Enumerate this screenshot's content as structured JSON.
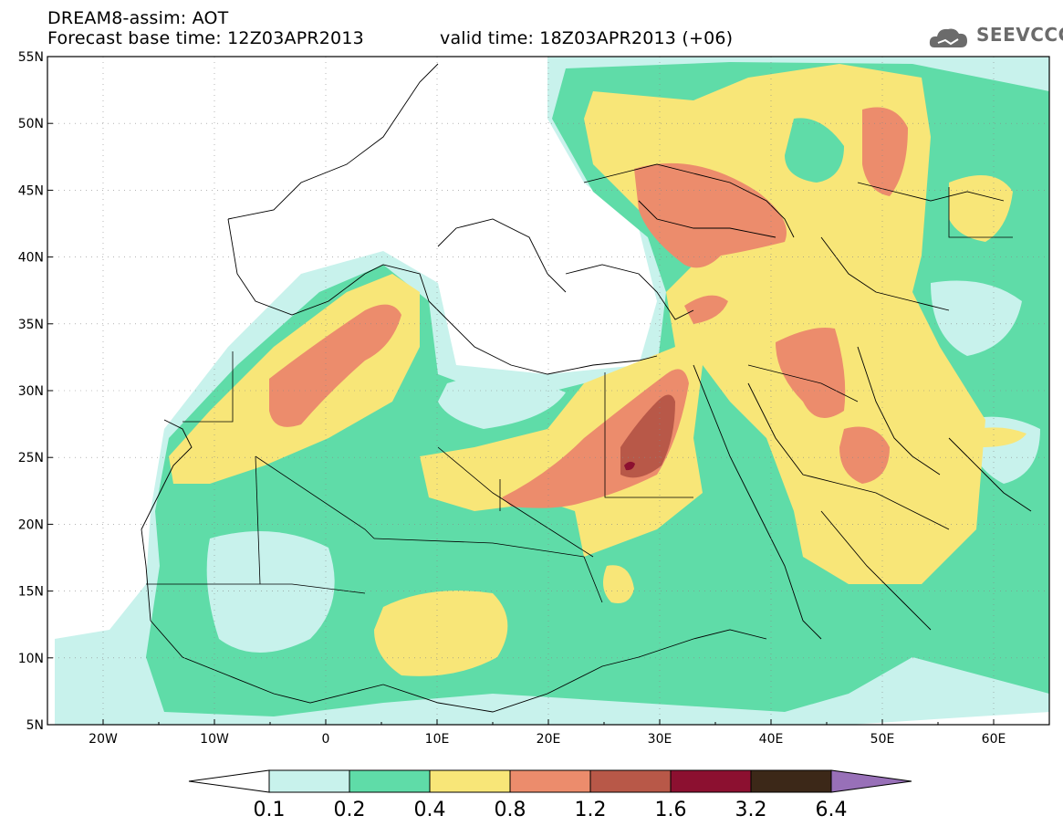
{
  "header": {
    "line1": "DREAM8-assim: AOT",
    "line2_left": "Forecast base time: 12Z03APR2013",
    "line2_right": "valid time: 18Z03APR2013 (+06)",
    "logo_text": "SEEVCCC"
  },
  "map": {
    "lon_range": [
      -25,
      65
    ],
    "lat_range": [
      5,
      55
    ],
    "lon_ticks": [
      "20W",
      "10W",
      "0",
      "10E",
      "20E",
      "30E",
      "40E",
      "50E",
      "60E"
    ],
    "lat_ticks": [
      "55N",
      "50N",
      "45N",
      "40N",
      "35N",
      "30N",
      "25N",
      "20N",
      "15N",
      "10N",
      "5N"
    ],
    "colors": {
      "c01": "#c8f2ec",
      "c02": "#5fdca8",
      "c04": "#f8e678",
      "c08": "#ec8c6c",
      "c12": "#b85848",
      "c16": "#8c1030",
      "c32": "#3c2818",
      "c64": "#9870b8"
    }
  },
  "colorbar": {
    "labels": [
      "0.1",
      "0.2",
      "0.4",
      "0.8",
      "1.2",
      "1.6",
      "3.2",
      "6.4"
    ],
    "colors": [
      "#c8f2ec",
      "#5fdca8",
      "#f8e678",
      "#ec8c6c",
      "#b85848",
      "#8c1030",
      "#3c2818"
    ],
    "low_end_color": "#ffffff",
    "high_end_color": "#9870b8"
  }
}
